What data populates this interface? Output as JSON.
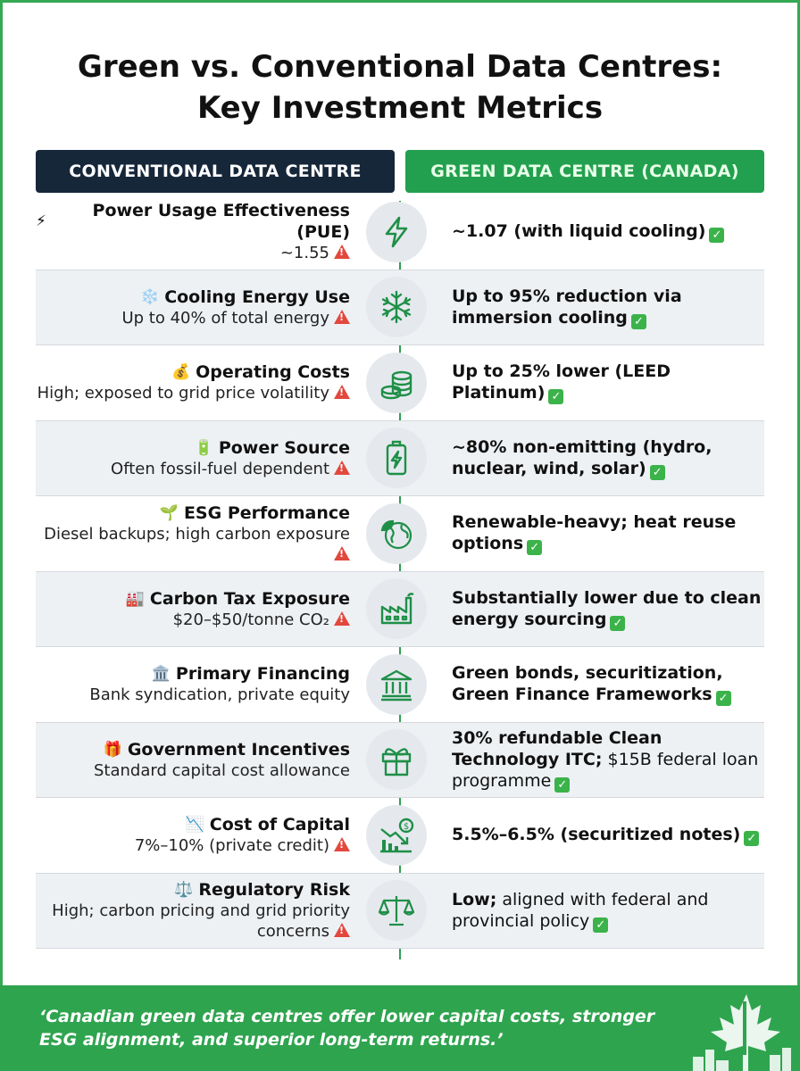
{
  "title_line1": "Green vs. Conventional Data Centres:",
  "title_line2": "Key Investment Metrics",
  "headers": {
    "conventional": "CONVENTIONAL DATA CENTRE",
    "green": "GREEN DATA CENTRE (CANADA)"
  },
  "rows": [
    {
      "emoji": "⚡",
      "metric": "Power Usage Effectiveness (PUE)",
      "conventional": "~1.55",
      "conv_warn": true,
      "green_bold": "~1.07 (with liquid cooling)",
      "green_light": "",
      "icon": "lightning-icon"
    },
    {
      "emoji": "❄️",
      "metric": "Cooling Energy Use",
      "conventional": "Up to 40% of total energy",
      "conv_warn": true,
      "green_bold": "Up to 95% reduction via immersion cooling",
      "green_light": "",
      "icon": "snowflake-icon"
    },
    {
      "emoji": "💰",
      "metric": "Operating Costs",
      "conventional": "High; exposed to grid price volatility",
      "conv_warn": true,
      "green_bold": "Up to 25% lower (LEED Platinum)",
      "green_light": "",
      "icon": "coins-icon"
    },
    {
      "emoji": "🔋",
      "metric": "Power Source",
      "conventional": "Often fossil-fuel dependent",
      "conv_warn": true,
      "green_bold": "~80% non-emitting (hydro, nuclear, wind, solar)",
      "green_light": "",
      "icon": "battery-icon"
    },
    {
      "emoji": "🌱",
      "metric": "ESG Performance",
      "conventional": "Diesel backups; high carbon exposure",
      "conv_warn": true,
      "green_bold": "Renewable-heavy; heat reuse options",
      "green_light": "",
      "icon": "globe-leaf-icon"
    },
    {
      "emoji": "🏭",
      "metric": "Carbon Tax Exposure",
      "conventional": "$20–$50/tonne CO₂",
      "conv_warn": true,
      "green_bold": "Substantially lower due to clean energy sourcing",
      "green_light": "",
      "icon": "factory-icon"
    },
    {
      "emoji": "🏛️",
      "metric": "Primary Financing",
      "conventional": "Bank syndication, private equity",
      "conv_warn": false,
      "green_bold": "Green bonds, securitization, Green Finance Frameworks",
      "green_light": "",
      "icon": "bank-icon"
    },
    {
      "emoji": "🎁",
      "metric": "Government Incentives",
      "conventional": "Standard capital cost allowance",
      "conv_warn": false,
      "green_bold": "30% refundable Clean Technology ITC;",
      "green_light": " $15B federal loan programme",
      "icon": "gift-icon"
    },
    {
      "emoji": "📉",
      "metric": "Cost of Capital",
      "conventional": "7%–10% (private credit)",
      "conv_warn": true,
      "green_bold": "5.5%–6.5% (securitized notes)",
      "green_light": "",
      "icon": "chart-down-icon"
    },
    {
      "emoji": "⚖️",
      "metric": "Regulatory Risk",
      "conventional": "High; carbon pricing and grid priority concerns",
      "conv_warn": true,
      "green_bold": "Low;",
      "green_light": " aligned with federal and provincial policy",
      "icon": "scales-icon"
    }
  ],
  "footer_quote": "‘Canadian green data centres offer lower capital costs, stronger ESG alignment, and superior long-term returns.’",
  "colors": {
    "accent_green": "#2fa44f",
    "navy": "#17273a",
    "warning": "#e2483d"
  }
}
